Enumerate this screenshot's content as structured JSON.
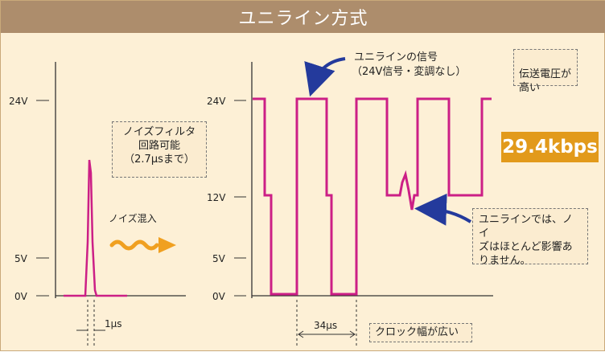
{
  "title": "ユニライン方式",
  "annotations": {
    "signal_label_line1": "ユニラインの信号",
    "signal_label_line2": "（24V信号・変調なし）",
    "voltage_note": "伝送電圧が\n高い",
    "speed": "29.4kbps",
    "filter_note_line1": "ノイズフィルタ",
    "filter_note_line2": "回路可能",
    "filter_note_line3": "（2.7μsまで）",
    "noise_in": "ノイズ混入",
    "noise_effect_line1": "ユニラインでは、ノイ",
    "noise_effect_line2": "ズはほとんど影響あ",
    "noise_effect_line3": "りません。",
    "clock_note": "クロック幅が広い",
    "pulse_width_left": "1μs",
    "pulse_width_right": "34μs"
  },
  "left_axis_ticks": [
    "24V",
    "5V",
    "0V"
  ],
  "right_axis_ticks": [
    "24V",
    "12V",
    "5V",
    "0V"
  ],
  "colors": {
    "signal": "#cc1f86",
    "title_bar": "#ad8d6c",
    "background": "#fdf0d6",
    "speed_badge": "#e29a1b",
    "arrow": "#243a9c",
    "noise_wave": "#f0a020"
  }
}
